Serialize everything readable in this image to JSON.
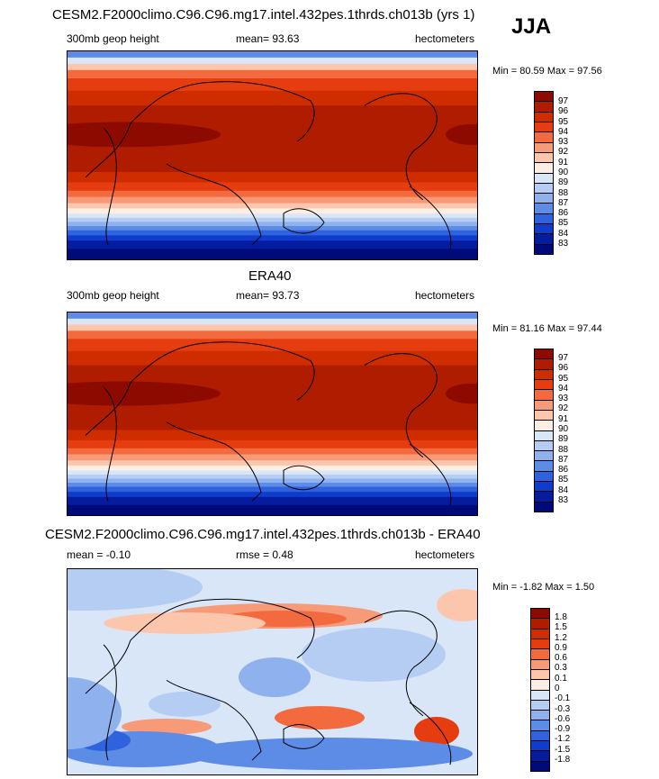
{
  "season": "JJA",
  "panels": [
    {
      "title": "CESM2.F2000climo.C96.C96.mg17.intel.432pes.1thrds.ch013b (yrs 1)",
      "left_label": "300mb geop height",
      "center_label": "mean=  93.63",
      "units": "hectometers",
      "minmax": "Min =  80.59 Max =  97.56",
      "field": "model"
    },
    {
      "title": "ERA40",
      "left_label": "300mb geop height",
      "center_label": "mean=  93.73",
      "units": "hectometers",
      "minmax": "Min =  81.16 Max =  97.44",
      "field": "obs"
    },
    {
      "title": "CESM2.F2000climo.C96.C96.mg17.intel.432pes.1thrds.ch013b - ERA40",
      "left_label": "mean =  -0.10",
      "center_label": "rmse =   0.48",
      "units": "hectometers",
      "minmax": "Min =  -1.82 Max =    1.50",
      "field": "diff"
    }
  ],
  "colorbars": {
    "abs": {
      "labels": [
        "97",
        "96",
        "95",
        "94",
        "93",
        "92",
        "91",
        "90",
        "89",
        "88",
        "87",
        "86",
        "85",
        "84",
        "83"
      ],
      "colors": [
        "#8c0a00",
        "#b01c00",
        "#cf2c00",
        "#e53d10",
        "#f36a3f",
        "#f79a77",
        "#fbc6ac",
        "#fdeee4",
        "#d9e6f8",
        "#b5cdf3",
        "#8fb2ee",
        "#5d8ce6",
        "#2f62dd",
        "#0f3ccd",
        "#061c9e",
        "#000a78"
      ]
    },
    "diff": {
      "labels": [
        "1.8",
        "1.5",
        "1.2",
        "0.9",
        "0.6",
        "0.3",
        "0.1",
        "0",
        "-0.1",
        "-0.3",
        "-0.6",
        "-0.9",
        "-1.2",
        "-1.5",
        "-1.8"
      ],
      "colors": [
        "#8c0a00",
        "#b01c00",
        "#cf2c00",
        "#e53d10",
        "#f36a3f",
        "#f79a77",
        "#fbc6ac",
        "#fdeee4",
        "#d9e6f8",
        "#b5cdf3",
        "#8fb2ee",
        "#5d8ce6",
        "#2f62dd",
        "#0f3ccd",
        "#061c9e",
        "#000a78"
      ]
    }
  }
}
